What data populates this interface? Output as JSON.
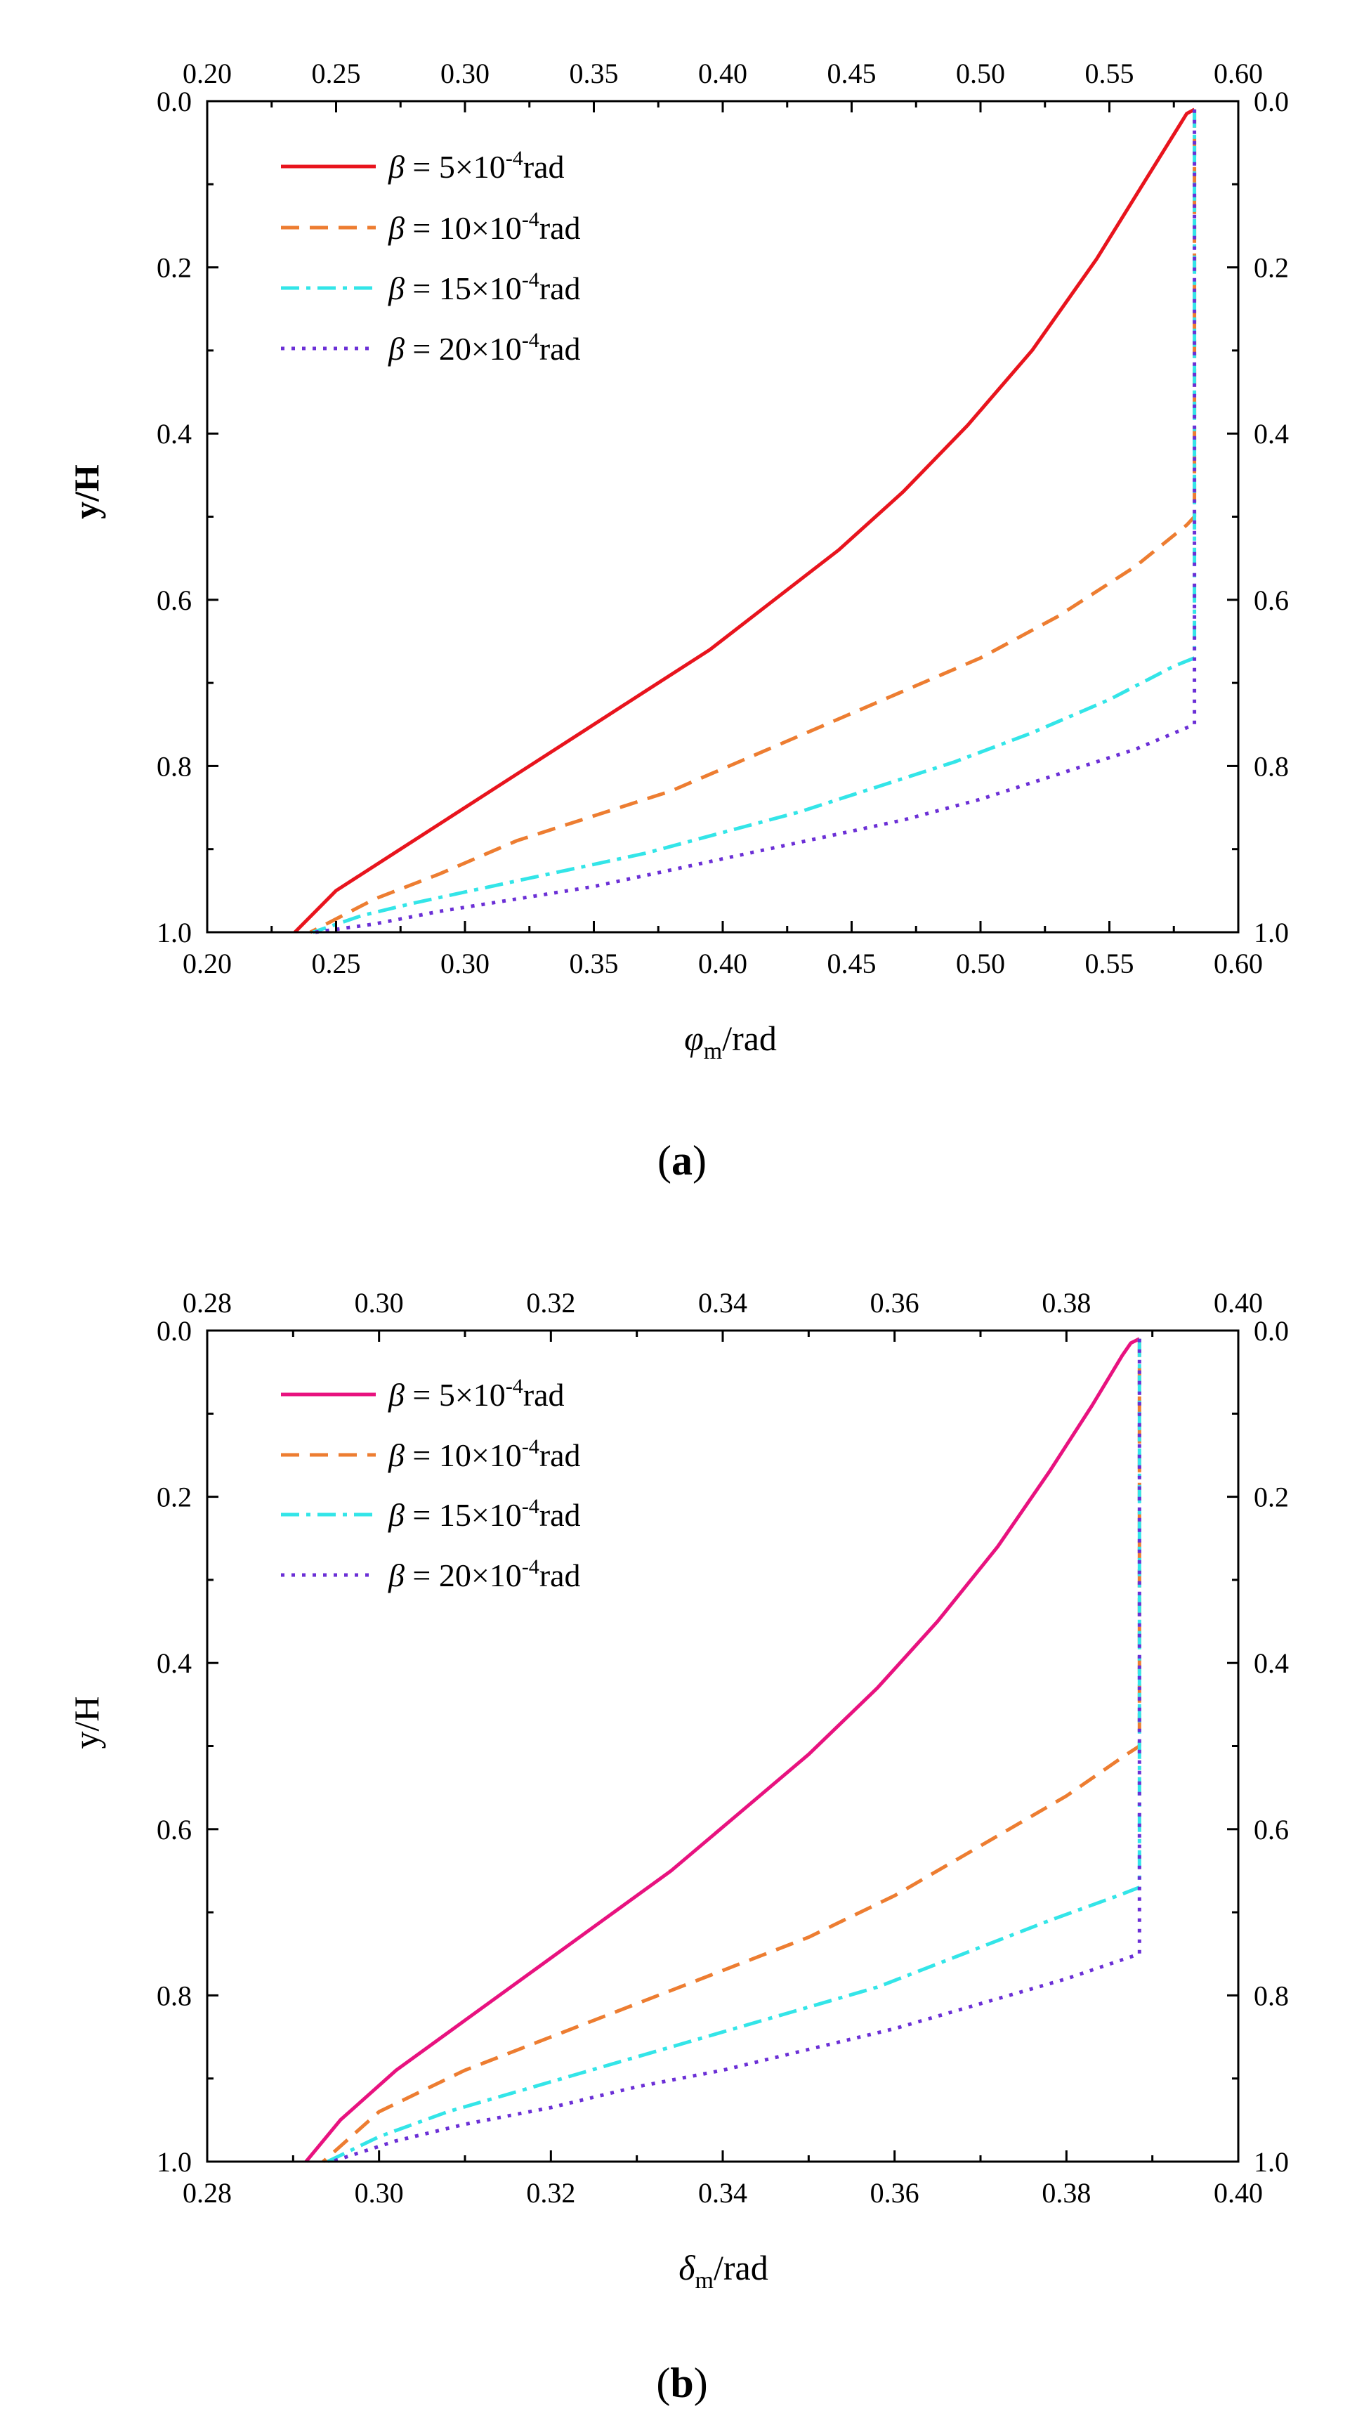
{
  "figure": {
    "panels": [
      {
        "caption": {
          "open": "(",
          "letter": "a",
          "close": ")"
        },
        "xlabel": {
          "symbol": "φ",
          "subscript": "m",
          "unit": "/rad"
        },
        "ylabel": "y/H",
        "legend": [
          {
            "symbol": "β",
            "prefix": " = 5×10",
            "exp": "-4",
            "suffix": "rad"
          },
          {
            "symbol": "β",
            "prefix": " = 10×10",
            "exp": "-4",
            "suffix": "rad"
          },
          {
            "symbol": "β",
            "prefix": " = 15×10",
            "exp": "-4",
            "suffix": "rad"
          },
          {
            "symbol": "β",
            "prefix": " = 20×10",
            "exp": "-4",
            "suffix": "rad"
          }
        ]
      },
      {
        "caption": {
          "open": "(",
          "letter": "b",
          "close": ")"
        },
        "xlabel": {
          "symbol": "δ",
          "subscript": "m",
          "unit": "/rad"
        },
        "ylabel": "y/H",
        "legend": [
          {
            "symbol": "β",
            "prefix": " = 5×10",
            "exp": "-4",
            "suffix": "rad"
          },
          {
            "symbol": "β",
            "prefix": " = 10×10",
            "exp": "-4",
            "suffix": "rad"
          },
          {
            "symbol": "β",
            "prefix": " = 15×10",
            "exp": "-4",
            "suffix": "rad"
          },
          {
            "symbol": "β",
            "prefix": " = 20×10",
            "exp": "-4",
            "suffix": "rad"
          }
        ]
      }
    ]
  },
  "chart_data": [
    {
      "type": "line",
      "title": "(a)",
      "xlabel": "φm/rad",
      "ylabel": "y/H",
      "xlim": [
        0.2,
        0.6
      ],
      "ylim": [
        0.0,
        1.0
      ],
      "y_inverted": true,
      "xticks": [
        "0.20",
        "0.25",
        "0.30",
        "0.35",
        "0.40",
        "0.45",
        "0.50",
        "0.55",
        "0.60"
      ],
      "yticks": [
        "0.0",
        "0.2",
        "0.4",
        "0.6",
        "0.8",
        "1.0"
      ],
      "series": [
        {
          "name": "β = 5×10-4rad",
          "color": "#e8141d",
          "style": "solid",
          "x": [
            0.583,
            0.58,
            0.577,
            0.565,
            0.545,
            0.52,
            0.495,
            0.47,
            0.445,
            0.42,
            0.395,
            0.37,
            0.345,
            0.32,
            0.295,
            0.27,
            0.25,
            0.234
          ],
          "y": [
            0.01,
            0.015,
            0.03,
            0.09,
            0.19,
            0.3,
            0.39,
            0.47,
            0.54,
            0.6,
            0.66,
            0.71,
            0.76,
            0.81,
            0.86,
            0.91,
            0.95,
            1.0
          ]
        },
        {
          "name": "β = 10×10-4rad",
          "color": "#ed7d31",
          "style": "dashed",
          "x": [
            0.583,
            0.583,
            0.58,
            0.56,
            0.53,
            0.5,
            0.47,
            0.44,
            0.41,
            0.38,
            0.35,
            0.32,
            0.29,
            0.265,
            0.24
          ],
          "y": [
            0.01,
            0.5,
            0.51,
            0.56,
            0.62,
            0.67,
            0.71,
            0.75,
            0.79,
            0.83,
            0.86,
            0.89,
            0.93,
            0.96,
            1.0
          ]
        },
        {
          "name": "β = 15×10-4rad",
          "color": "#33e5e8",
          "style": "dashdot",
          "x": [
            0.583,
            0.583,
            0.575,
            0.55,
            0.52,
            0.49,
            0.46,
            0.43,
            0.4,
            0.37,
            0.34,
            0.31,
            0.28,
            0.26,
            0.241
          ],
          "y": [
            0.01,
            0.67,
            0.68,
            0.72,
            0.76,
            0.795,
            0.825,
            0.855,
            0.88,
            0.905,
            0.925,
            0.945,
            0.965,
            0.98,
            1.0
          ]
        },
        {
          "name": "β = 20×10-4rad",
          "color": "#6b2fd6",
          "style": "dotted",
          "x": [
            0.583,
            0.583,
            0.56,
            0.53,
            0.5,
            0.47,
            0.44,
            0.41,
            0.38,
            0.35,
            0.32,
            0.29,
            0.265,
            0.242
          ],
          "y": [
            0.01,
            0.75,
            0.78,
            0.81,
            0.84,
            0.865,
            0.885,
            0.905,
            0.925,
            0.945,
            0.96,
            0.975,
            0.99,
            1.0
          ]
        }
      ]
    },
    {
      "type": "line",
      "title": "(b)",
      "xlabel": "δm/rad",
      "ylabel": "y/H",
      "xlim": [
        0.28,
        0.4
      ],
      "ylim": [
        0.0,
        1.0
      ],
      "y_inverted": true,
      "xticks": [
        "0.28",
        "0.30",
        "0.32",
        "0.34",
        "0.36",
        "0.38",
        "0.40"
      ],
      "yticks": [
        "0.0",
        "0.2",
        "0.4",
        "0.6",
        "0.8",
        "1.0"
      ],
      "series": [
        {
          "name": "β = 5×10-4rad",
          "color": "#e8127f",
          "style": "solid",
          "x": [
            0.3885,
            0.3875,
            0.3865,
            0.383,
            0.378,
            0.372,
            0.365,
            0.358,
            0.35,
            0.342,
            0.334,
            0.326,
            0.318,
            0.31,
            0.302,
            0.2955,
            0.2915
          ],
          "y": [
            0.01,
            0.015,
            0.03,
            0.09,
            0.17,
            0.26,
            0.35,
            0.43,
            0.51,
            0.58,
            0.65,
            0.71,
            0.77,
            0.83,
            0.89,
            0.95,
            1.0
          ]
        },
        {
          "name": "β = 10×10-4rad",
          "color": "#ed7d31",
          "style": "dashed",
          "x": [
            0.3885,
            0.3885,
            0.387,
            0.38,
            0.37,
            0.36,
            0.35,
            0.34,
            0.33,
            0.32,
            0.31,
            0.3,
            0.2935
          ],
          "y": [
            0.01,
            0.5,
            0.51,
            0.56,
            0.62,
            0.68,
            0.73,
            0.77,
            0.81,
            0.85,
            0.89,
            0.94,
            1.0
          ]
        },
        {
          "name": "β = 15×10-4rad",
          "color": "#33e5e8",
          "style": "dashdot",
          "x": [
            0.3885,
            0.3885,
            0.386,
            0.378,
            0.368,
            0.358,
            0.348,
            0.338,
            0.328,
            0.318,
            0.308,
            0.3,
            0.294
          ],
          "y": [
            0.01,
            0.67,
            0.68,
            0.71,
            0.75,
            0.79,
            0.82,
            0.85,
            0.88,
            0.91,
            0.94,
            0.97,
            1.0
          ]
        },
        {
          "name": "β = 20×10-4rad",
          "color": "#6b2fd6",
          "style": "dotted",
          "x": [
            0.3885,
            0.3885,
            0.38,
            0.37,
            0.36,
            0.35,
            0.34,
            0.33,
            0.32,
            0.31,
            0.302,
            0.2945
          ],
          "y": [
            0.01,
            0.75,
            0.78,
            0.81,
            0.84,
            0.865,
            0.89,
            0.91,
            0.935,
            0.955,
            0.975,
            1.0
          ]
        }
      ]
    }
  ]
}
